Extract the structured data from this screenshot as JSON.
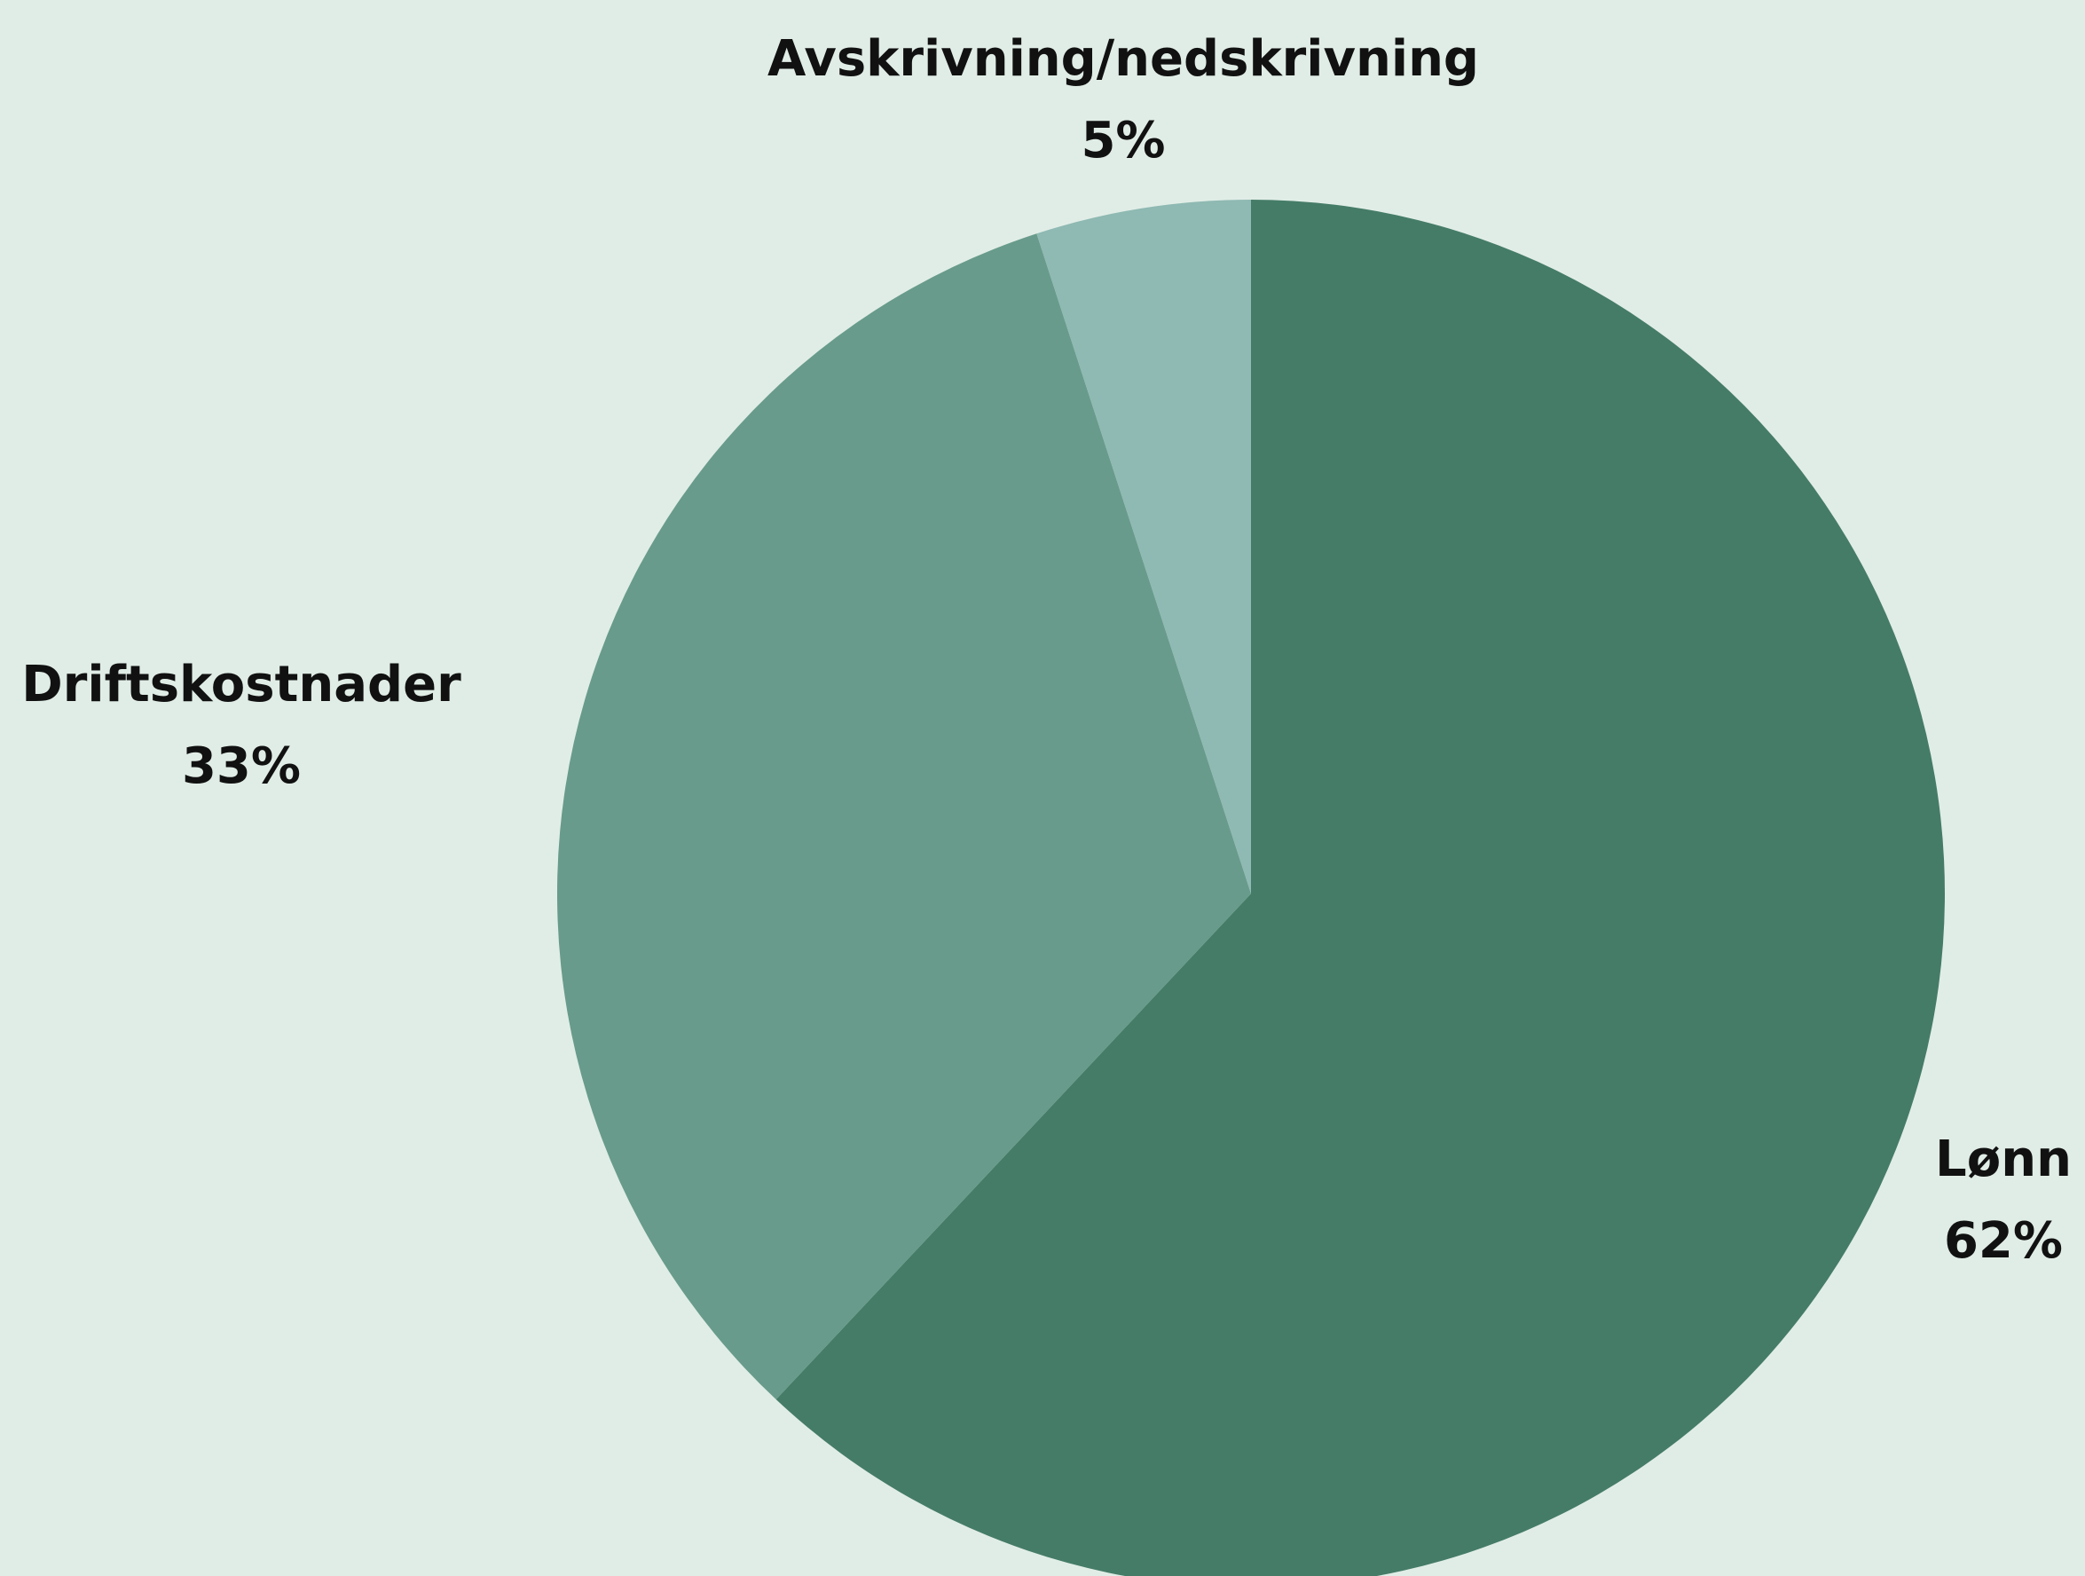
{
  "chart_data": {
    "type": "pie",
    "title": "",
    "start_angle_deg": 0,
    "direction": "clockwise",
    "slices": [
      {
        "label": "Lønn",
        "value": 62,
        "value_label": "62%",
        "color": "#457c68"
      },
      {
        "label": "Driftskostnader",
        "value": 33,
        "value_label": "33%",
        "color": "#689b8b"
      },
      {
        "label": "Avskrivning/nedskrivning",
        "value": 5,
        "value_label": "5%",
        "color": "#8fb9b3"
      }
    ],
    "background_color": "#e0ede6",
    "legend": "none"
  }
}
